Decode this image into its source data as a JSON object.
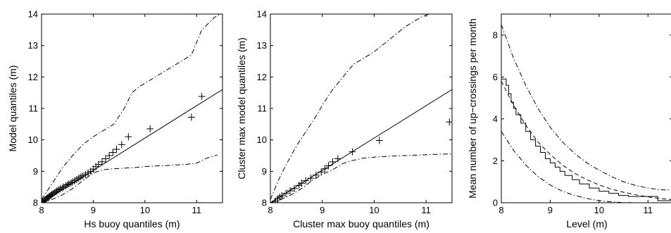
{
  "chart_data": [
    {
      "type": "scatter",
      "title": "",
      "xlabel": "Hs buoy quantiles (m)",
      "ylabel": "Model quantiles (m)",
      "xlim": [
        8,
        11.5
      ],
      "ylim": [
        8,
        14
      ],
      "xticks": [
        8,
        9,
        10,
        11
      ],
      "yticks": [
        8,
        9,
        10,
        11,
        12,
        13,
        14
      ],
      "grid": false,
      "series": [
        {
          "role": "quantile-points",
          "marker": "+",
          "x": [
            8.02,
            8.04,
            8.06,
            8.08,
            8.1,
            8.12,
            8.14,
            8.16,
            8.18,
            8.2,
            8.22,
            8.25,
            8.28,
            8.3,
            8.33,
            8.36,
            8.4,
            8.43,
            8.47,
            8.5,
            8.53,
            8.57,
            8.6,
            8.64,
            8.68,
            8.72,
            8.76,
            8.8,
            8.85,
            8.9,
            8.95,
            9.0,
            9.05,
            9.1,
            9.17,
            9.24,
            9.31,
            9.38,
            9.45,
            9.55,
            9.68,
            10.1,
            10.9,
            11.1
          ],
          "y": [
            8.02,
            8.05,
            8.08,
            8.11,
            8.14,
            8.16,
            8.19,
            8.21,
            8.24,
            8.26,
            8.29,
            8.32,
            8.35,
            8.38,
            8.41,
            8.44,
            8.47,
            8.5,
            8.54,
            8.57,
            8.6,
            8.63,
            8.66,
            8.7,
            8.74,
            8.78,
            8.82,
            8.86,
            8.9,
            8.95,
            9.0,
            9.07,
            9.15,
            9.22,
            9.3,
            9.4,
            9.5,
            9.6,
            9.7,
            9.85,
            10.1,
            10.35,
            10.72,
            11.38
          ]
        },
        {
          "role": "reference-line",
          "style": "solid",
          "x": [
            8,
            11.5
          ],
          "y": [
            8,
            11.6
          ]
        },
        {
          "role": "upper-envelope",
          "style": "dashdot",
          "x": [
            8.0,
            8.2,
            8.4,
            8.6,
            8.8,
            9.0,
            9.2,
            9.4,
            9.6,
            9.75,
            9.9,
            10.1,
            10.3,
            10.5,
            10.7,
            10.9,
            11.1,
            11.35,
            11.5
          ],
          "y": [
            8.1,
            8.6,
            9.1,
            9.5,
            9.85,
            10.1,
            10.3,
            10.5,
            11.0,
            11.5,
            11.7,
            11.9,
            12.1,
            12.3,
            12.5,
            12.7,
            13.5,
            13.9,
            14.05
          ]
        },
        {
          "role": "lower-envelope",
          "style": "dashdot",
          "x": [
            8.0,
            8.2,
            8.4,
            8.6,
            8.8,
            9.0,
            9.2,
            9.4,
            9.6,
            9.8,
            10.0,
            10.2,
            10.4,
            10.6,
            10.8,
            11.0,
            11.2,
            11.4
          ],
          "y": [
            8.0,
            8.1,
            8.25,
            8.45,
            8.7,
            8.95,
            9.05,
            9.08,
            9.1,
            9.12,
            9.15,
            9.17,
            9.18,
            9.2,
            9.22,
            9.26,
            9.42,
            9.52
          ]
        }
      ]
    },
    {
      "type": "scatter",
      "title": "",
      "xlabel": "Cluster max buoy quantiles (m)",
      "ylabel": "Cluster max model quantiles (m)",
      "xlim": [
        8,
        11.5
      ],
      "ylim": [
        8,
        14
      ],
      "xticks": [
        8,
        9,
        10,
        11
      ],
      "yticks": [
        8,
        9,
        10,
        11,
        12,
        13,
        14
      ],
      "grid": false,
      "series": [
        {
          "role": "quantile-points",
          "marker": "+",
          "x": [
            8.1,
            8.14,
            8.18,
            8.22,
            8.3,
            8.38,
            8.46,
            8.55,
            8.6,
            8.68,
            8.78,
            8.88,
            8.98,
            9.05,
            9.12,
            9.2,
            9.3,
            9.58,
            10.1,
            11.45
          ],
          "y": [
            8.05,
            8.12,
            8.18,
            8.22,
            8.3,
            8.38,
            8.45,
            8.55,
            8.62,
            8.7,
            8.78,
            8.88,
            8.98,
            9.08,
            9.18,
            9.3,
            9.4,
            9.62,
            9.98,
            10.57
          ]
        },
        {
          "role": "reference-line",
          "style": "solid",
          "x": [
            8,
            11.5
          ],
          "y": [
            8,
            11.6
          ]
        },
        {
          "role": "upper-envelope",
          "style": "dashdot",
          "x": [
            8.0,
            8.15,
            8.3,
            8.5,
            8.7,
            8.9,
            9.0,
            9.2,
            9.4,
            9.6,
            9.8,
            10.0,
            10.3,
            10.6,
            10.9,
            11.15
          ],
          "y": [
            8.1,
            8.7,
            9.2,
            9.8,
            10.3,
            10.8,
            11.1,
            11.6,
            12.0,
            12.4,
            12.6,
            12.8,
            13.2,
            13.6,
            13.9,
            14.05
          ]
        },
        {
          "role": "lower-envelope",
          "style": "dashdot",
          "x": [
            8.0,
            8.2,
            8.4,
            8.6,
            8.8,
            9.0,
            9.2,
            9.4,
            9.6,
            9.8,
            10.0,
            10.3,
            10.6,
            10.9,
            11.2,
            11.5
          ],
          "y": [
            8.0,
            8.1,
            8.25,
            8.45,
            8.7,
            8.9,
            9.05,
            9.25,
            9.35,
            9.42,
            9.45,
            9.48,
            9.5,
            9.52,
            9.54,
            9.55
          ]
        }
      ]
    },
    {
      "type": "line",
      "title": "",
      "xlabel": "Level (m)",
      "ylabel": "Mean number of up−crossings per month",
      "xlim": [
        8,
        11.5
      ],
      "ylim": [
        0,
        9
      ],
      "xticks": [
        8,
        9,
        10,
        11
      ],
      "yticks": [
        0,
        2,
        4,
        6,
        8
      ],
      "grid": false,
      "series": [
        {
          "role": "observed",
          "style": "step",
          "x": [
            8.0,
            8.05,
            8.1,
            8.15,
            8.2,
            8.25,
            8.3,
            8.4,
            8.5,
            8.6,
            8.7,
            8.8,
            8.9,
            9.0,
            9.1,
            9.2,
            9.3,
            9.45,
            9.6,
            9.8,
            10.0,
            10.2,
            10.4,
            10.6,
            10.8,
            11.0,
            11.2,
            11.5
          ],
          "y": [
            5.9,
            5.9,
            5.6,
            5.2,
            4.8,
            4.5,
            4.2,
            3.8,
            3.4,
            3.0,
            2.7,
            2.4,
            2.1,
            1.9,
            1.7,
            1.5,
            1.3,
            1.1,
            0.9,
            0.7,
            0.55,
            0.45,
            0.35,
            0.3,
            0.3,
            0.3,
            0.1,
            0.1
          ]
        },
        {
          "role": "model",
          "style": "dashed",
          "x": [
            8.0,
            8.25,
            8.5,
            8.75,
            9.0,
            9.25,
            9.5,
            9.75,
            10.0,
            10.25,
            10.5,
            10.75,
            11.0,
            11.25,
            11.5
          ],
          "y": [
            5.8,
            4.65,
            3.7,
            2.9,
            2.3,
            1.8,
            1.4,
            1.1,
            0.85,
            0.65,
            0.5,
            0.38,
            0.28,
            0.2,
            0.15
          ]
        },
        {
          "role": "upper-band",
          "style": "dashdot",
          "x": [
            8.0,
            8.25,
            8.5,
            8.75,
            9.0,
            9.25,
            9.5,
            9.75,
            10.0,
            10.25,
            10.5,
            10.75,
            11.0,
            11.25,
            11.5
          ],
          "y": [
            8.5,
            6.9,
            5.6,
            4.5,
            3.6,
            2.9,
            2.35,
            1.9,
            1.55,
            1.25,
            1.0,
            0.82,
            0.7,
            0.62,
            0.6
          ]
        },
        {
          "role": "lower-band",
          "style": "dashdot",
          "x": [
            8.0,
            8.25,
            8.5,
            8.75,
            9.0,
            9.25,
            9.5,
            9.75,
            10.0,
            10.25,
            10.5,
            10.75,
            11.0
          ],
          "y": [
            3.4,
            2.5,
            1.8,
            1.25,
            0.85,
            0.55,
            0.35,
            0.2,
            0.1,
            0.04,
            0.01,
            0.0,
            0.0
          ]
        }
      ]
    }
  ]
}
